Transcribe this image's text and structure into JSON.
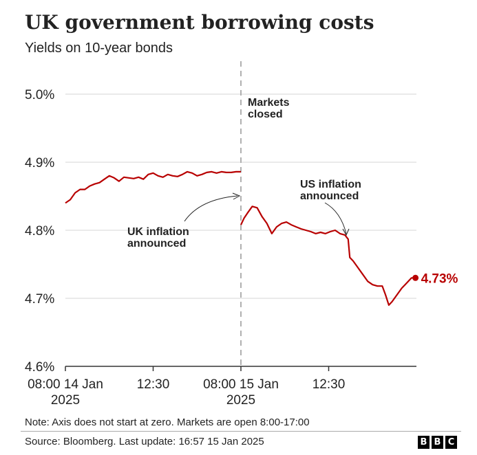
{
  "header": {
    "title": "UK government borrowing costs",
    "subtitle": "Yields on 10-year bonds"
  },
  "footer": {
    "note": "Note: Axis does not start at zero. Markets are open 8:00-17:00",
    "source": "Source: Bloomberg. Last update: 16:57 15 Jan 2025",
    "logo_letters": [
      "B",
      "B",
      "C"
    ]
  },
  "chart_data": {
    "type": "line",
    "title": "UK government borrowing costs",
    "subtitle": "Yields on 10-year bonds",
    "ylim": [
      4.6,
      5.0
    ],
    "y_ticks": [
      {
        "value": 4.6,
        "label": "4.6%"
      },
      {
        "value": 4.7,
        "label": "4.7%"
      },
      {
        "value": 4.8,
        "label": "4.8%"
      },
      {
        "value": 4.9,
        "label": "4.9%"
      },
      {
        "value": 5.0,
        "label": "5.0%"
      }
    ],
    "x_ticks": [
      {
        "time": "14 Jan 08:00",
        "label": [
          "08:00 14 Jan",
          "2025"
        ]
      },
      {
        "time": "14 Jan 12:30",
        "label": [
          "12:30"
        ]
      },
      {
        "time": "15 Jan 08:00",
        "label": [
          "08:00 15 Jan",
          "2025"
        ]
      },
      {
        "time": "15 Jan 12:30",
        "label": [
          "12:30"
        ]
      }
    ],
    "grid": true,
    "line_color": "#b80000",
    "end_label": "4.73%",
    "series": [
      {
        "segment": "14 Jan",
        "points": [
          [
            "08:00",
            4.84
          ],
          [
            "08:15",
            4.845
          ],
          [
            "08:30",
            4.855
          ],
          [
            "08:45",
            4.86
          ],
          [
            "09:00",
            4.86
          ],
          [
            "09:15",
            4.865
          ],
          [
            "09:30",
            4.868
          ],
          [
            "09:45",
            4.87
          ],
          [
            "10:00",
            4.875
          ],
          [
            "10:15",
            4.88
          ],
          [
            "10:30",
            4.877
          ],
          [
            "10:45",
            4.872
          ],
          [
            "11:00",
            4.878
          ],
          [
            "11:15",
            4.877
          ],
          [
            "11:30",
            4.876
          ],
          [
            "11:45",
            4.878
          ],
          [
            "12:00",
            4.875
          ],
          [
            "12:15",
            4.882
          ],
          [
            "12:30",
            4.884
          ],
          [
            "12:45",
            4.88
          ],
          [
            "13:00",
            4.878
          ],
          [
            "13:15",
            4.882
          ],
          [
            "13:30",
            4.88
          ],
          [
            "13:45",
            4.879
          ],
          [
            "14:00",
            4.882
          ],
          [
            "14:15",
            4.886
          ],
          [
            "14:30",
            4.884
          ],
          [
            "14:45",
            4.88
          ],
          [
            "15:00",
            4.882
          ],
          [
            "15:15",
            4.885
          ],
          [
            "15:30",
            4.886
          ],
          [
            "15:45",
            4.884
          ],
          [
            "16:00",
            4.886
          ],
          [
            "16:15",
            4.885
          ],
          [
            "16:30",
            4.885
          ],
          [
            "16:45",
            4.886
          ],
          [
            "17:00",
            4.886
          ]
        ]
      },
      {
        "segment": "15 Jan",
        "points": [
          [
            "08:00",
            4.808
          ],
          [
            "08:10",
            4.818
          ],
          [
            "08:20",
            4.825
          ],
          [
            "08:35",
            4.835
          ],
          [
            "08:50",
            4.833
          ],
          [
            "09:05",
            4.82
          ],
          [
            "09:20",
            4.81
          ],
          [
            "09:35",
            4.795
          ],
          [
            "09:50",
            4.805
          ],
          [
            "10:05",
            4.81
          ],
          [
            "10:20",
            4.812
          ],
          [
            "10:35",
            4.808
          ],
          [
            "10:50",
            4.805
          ],
          [
            "11:05",
            4.802
          ],
          [
            "11:20",
            4.8
          ],
          [
            "11:35",
            4.798
          ],
          [
            "11:50",
            4.795
          ],
          [
            "12:05",
            4.797
          ],
          [
            "12:20",
            4.795
          ],
          [
            "12:35",
            4.798
          ],
          [
            "12:50",
            4.8
          ],
          [
            "13:05",
            4.795
          ],
          [
            "13:20",
            4.793
          ],
          [
            "13:30",
            4.787
          ],
          [
            "13:35",
            4.76
          ],
          [
            "13:45",
            4.755
          ],
          [
            "14:00",
            4.745
          ],
          [
            "14:15",
            4.735
          ],
          [
            "14:30",
            4.725
          ],
          [
            "14:45",
            4.72
          ],
          [
            "15:00",
            4.718
          ],
          [
            "15:15",
            4.718
          ],
          [
            "15:25",
            4.705
          ],
          [
            "15:35",
            4.69
          ],
          [
            "15:45",
            4.695
          ],
          [
            "16:00",
            4.705
          ],
          [
            "16:15",
            4.715
          ],
          [
            "16:25",
            4.72
          ],
          [
            "16:35",
            4.725
          ],
          [
            "16:45",
            4.73
          ],
          [
            "16:57",
            4.73
          ]
        ]
      }
    ],
    "annotations": [
      {
        "text": [
          "Markets",
          "closed"
        ],
        "time": "15 Jan 08:00"
      },
      {
        "text": [
          "UK inflation",
          "announced"
        ],
        "time": "15 Jan 08:00",
        "value": 4.85
      },
      {
        "text": [
          "US inflation",
          "announced"
        ],
        "time": "15 Jan 13:30",
        "value": 4.79
      }
    ]
  }
}
